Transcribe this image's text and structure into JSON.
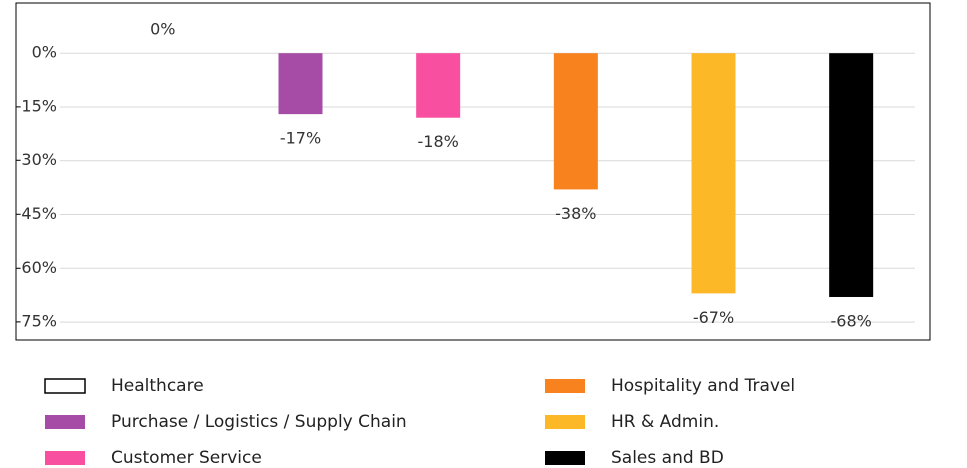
{
  "chart_data": {
    "type": "bar",
    "ylim": [
      -80,
      14
    ],
    "yticks": [
      {
        "value": 0,
        "label": "0%"
      },
      {
        "value": -15,
        "label": "-15%"
      },
      {
        "value": -30,
        "label": "-30%"
      },
      {
        "value": -45,
        "label": "-45%"
      },
      {
        "value": -60,
        "label": "-60%"
      },
      {
        "value": -75,
        "label": "-75%"
      }
    ],
    "grid": true,
    "series": [
      {
        "name": "Healthcare",
        "color": "#ffffff",
        "values": [
          0
        ],
        "value_labels": [
          "0%"
        ]
      },
      {
        "name": "Purchase / Logistics / Supply Chain",
        "color": "#a64ca6",
        "values": [
          -17
        ],
        "value_labels": [
          "-17%"
        ]
      },
      {
        "name": "Customer Service",
        "color": "#f94fa0",
        "values": [
          -18
        ],
        "value_labels": [
          "-18%"
        ]
      },
      {
        "name": "Hospitality and Travel",
        "color": "#f7821e",
        "values": [
          -38
        ],
        "value_labels": [
          "-38%"
        ]
      },
      {
        "name": "HR & Admin.",
        "color": "#fdb827",
        "values": [
          -67
        ],
        "value_labels": [
          "-67%"
        ]
      },
      {
        "name": "Sales and BD",
        "color": "#000000",
        "values": [
          -68
        ],
        "value_labels": [
          "-68%"
        ]
      }
    ]
  }
}
